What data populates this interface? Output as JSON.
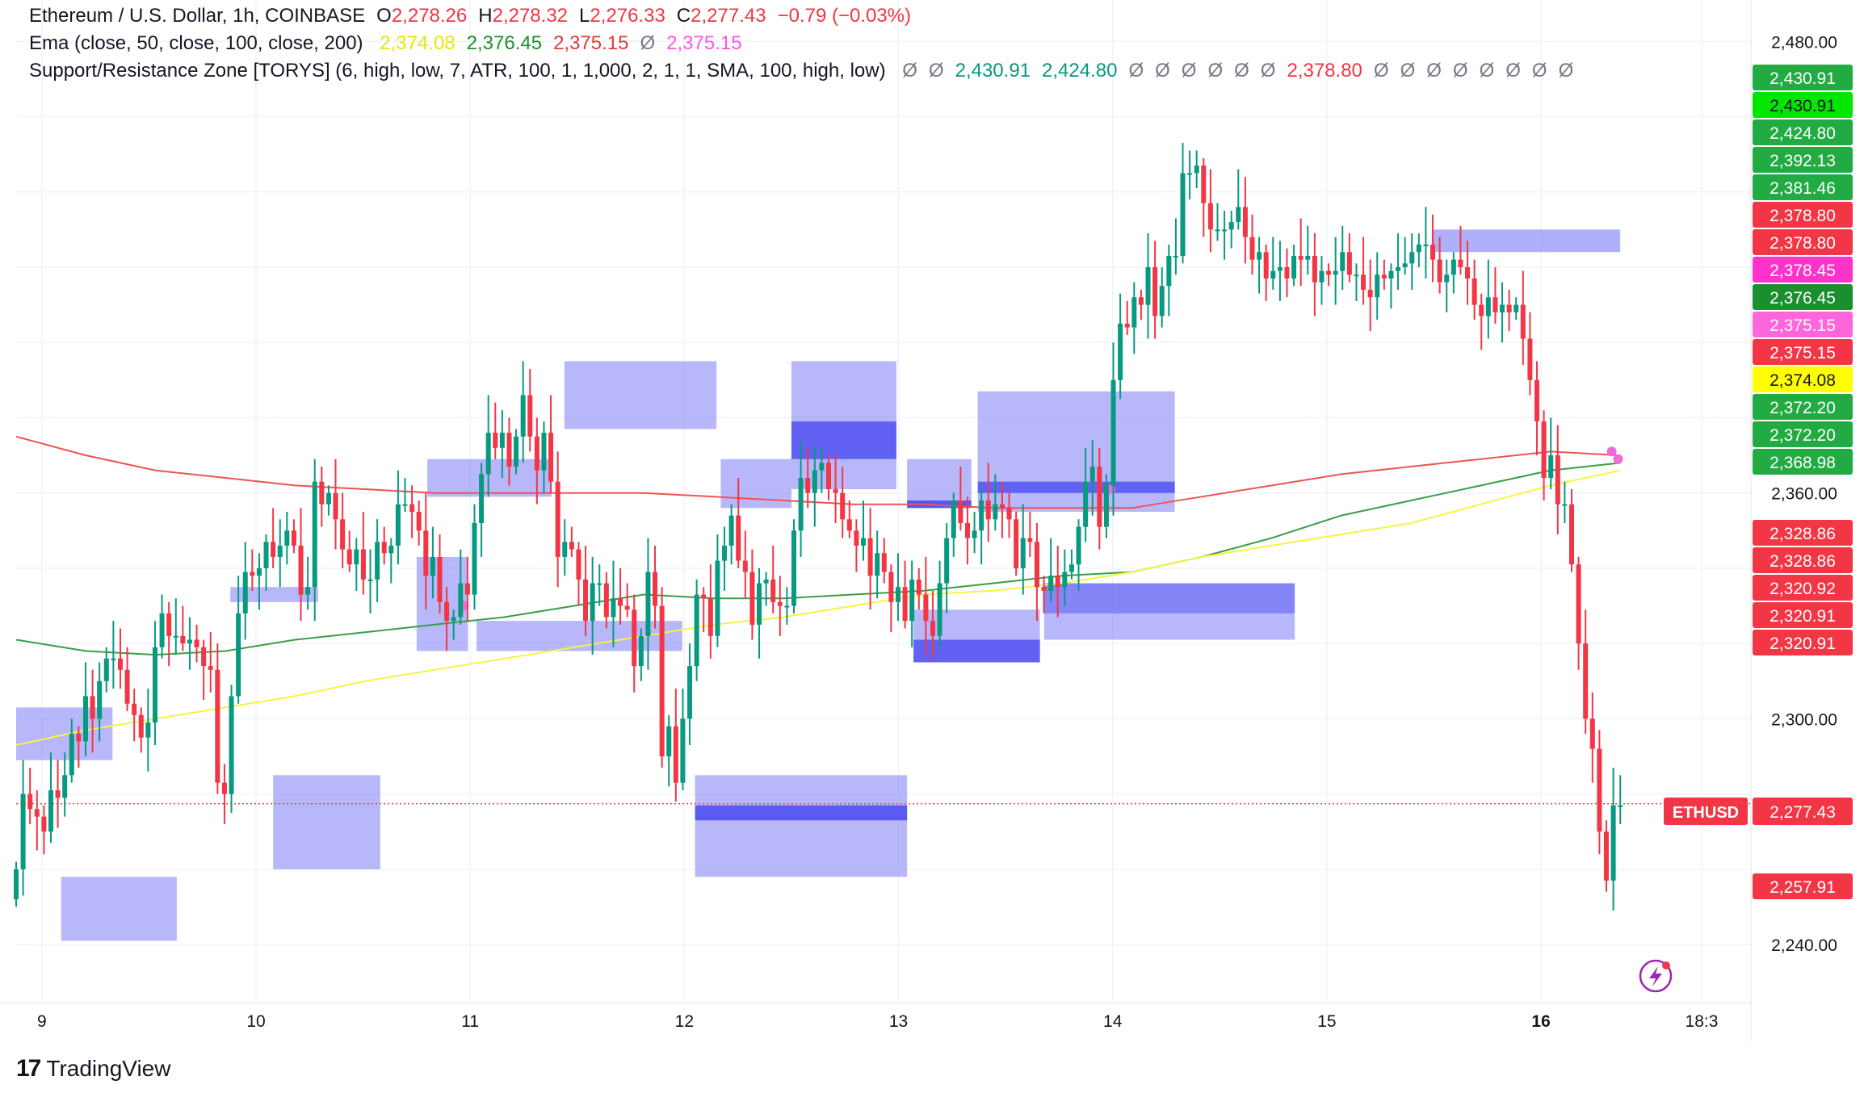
{
  "legend": {
    "title_line": {
      "symbol": "Ethereum / U.S. Dollar, 1h, COINBASE",
      "open_label": "O",
      "open": "2,278.26",
      "high_label": "H",
      "high": "2,278.32",
      "low_label": "L",
      "low": "2,276.33",
      "close_label": "C",
      "close": "2,277.43",
      "change": "−0.79 (−0.03%)"
    },
    "ema_line": {
      "name": "Ema (close, 50, close, 100, close, 200)",
      "values": [
        "2,374.08",
        "2,376.45",
        "2,375.15",
        "Ø",
        "2,375.15"
      ],
      "colors": [
        "#e8e800",
        "#1b8f2e",
        "#e53935",
        "#787b86",
        "#ff55e6"
      ]
    },
    "sr_line": {
      "name": "Support/Resistance Zone [TORYS] (6, high, low, 7, ATR, 100, 1, 1,000, 2, 1, 1, SMA, 100, high, low)",
      "values": [
        "Ø",
        "Ø",
        "2,430.91",
        "2,424.80",
        "Ø",
        "Ø",
        "Ø",
        "Ø",
        "Ø",
        "Ø",
        "2,378.80",
        "Ø",
        "Ø",
        "Ø",
        "Ø",
        "Ø",
        "Ø",
        "Ø",
        "Ø"
      ],
      "colors": [
        "#787b86",
        "#787b86",
        "#089981",
        "#089981",
        "#787b86",
        "#787b86",
        "#787b86",
        "#787b86",
        "#787b86",
        "#787b86",
        "#f23645",
        "#787b86",
        "#787b86",
        "#787b86",
        "#787b86",
        "#787b86",
        "#787b86",
        "#787b86",
        "#787b86"
      ]
    }
  },
  "colors": {
    "up": "#089981",
    "down": "#f23645",
    "zone": "#6f6ff6",
    "zone_dark": "#4b4bf2",
    "ema50": "#f5f542",
    "ema100": "#3a9e47",
    "ema200": "#ef5350",
    "ema_marker": "#f06bd7",
    "grid": "#f0f3fa",
    "axis_text": "#131722"
  },
  "price_labels": [
    {
      "value": "2,430.91",
      "bg": "#22ab43"
    },
    {
      "value": "2,430.91",
      "bg": "#00e600"
    },
    {
      "value": "2,424.80",
      "bg": "#22ab43"
    },
    {
      "value": "2,392.13",
      "bg": "#22ab43"
    },
    {
      "value": "2,381.46",
      "bg": "#22ab43"
    },
    {
      "value": "2,378.80",
      "bg": "#f23645"
    },
    {
      "value": "2,378.80",
      "bg": "#f23645"
    },
    {
      "value": "2,378.45",
      "bg": "#ff33cc"
    },
    {
      "value": "2,376.45",
      "bg": "#1b8f2e"
    },
    {
      "value": "2,375.15",
      "bg": "#ff66dd"
    },
    {
      "value": "2,375.15",
      "bg": "#f23645"
    },
    {
      "value": "2,374.08",
      "bg": "#ffff00"
    },
    {
      "value": "2,372.20",
      "bg": "#22ab43"
    },
    {
      "value": "2,372.20",
      "bg": "#22ab43"
    },
    {
      "value": "2,368.98",
      "bg": "#22ab43"
    },
    {
      "value": "2,328.86",
      "bg": "#f23645"
    },
    {
      "value": "2,328.86",
      "bg": "#f23645"
    },
    {
      "value": "2,320.92",
      "bg": "#f23645"
    },
    {
      "value": "2,320.91",
      "bg": "#f23645"
    },
    {
      "value": "2,320.91",
      "bg": "#f23645"
    },
    {
      "value": "2,257.91",
      "bg": "#f23645"
    }
  ],
  "symbol_label": "ETHUSD",
  "last_price": "2,277.43",
  "brand": "TradingView",
  "chart_data": {
    "type": "candlestick",
    "title": "Ethereum / U.S. Dollar, 1h, COINBASE",
    "y_ticks": [
      "2,480.00",
      "2,360.00",
      "2,300.00",
      "2,240.00"
    ],
    "y_tick_values": [
      2480,
      2360,
      2300,
      2240
    ],
    "x_ticks": [
      "9",
      "10",
      "11",
      "12",
      "13",
      "14",
      "15",
      "16",
      "18:3"
    ],
    "x_tick_days": [
      9,
      10,
      11,
      12,
      13,
      14,
      15,
      16,
      16.75
    ],
    "x_range_days": [
      8.88,
      16.95
    ],
    "y_range": [
      2225,
      2491
    ],
    "last_price": 2277.43,
    "candle_closes": [
      2260,
      2280,
      2276,
      2274,
      2270,
      2281,
      2279,
      2285,
      2296,
      2294,
      2306,
      2300,
      2310,
      2316,
      2316,
      2313,
      2304,
      2301,
      2295,
      2299,
      2319,
      2328,
      2322,
      2322,
      2320,
      2321,
      2319,
      2314,
      2313,
      2283,
      2280,
      2306,
      2328,
      2339,
      2338,
      2340,
      2347,
      2343,
      2346,
      2350,
      2346,
      2333,
      2335,
      2363,
      2357,
      2360,
      2353,
      2345,
      2341,
      2345,
      2337,
      2337,
      2347,
      2344,
      2346,
      2357,
      2357,
      2355,
      2350,
      2338,
      2343,
      2331,
      2326,
      2327,
      2336,
      2333,
      2352,
      2365,
      2376,
      2372,
      2376,
      2367,
      2375,
      2386,
      2375,
      2366,
      2376,
      2363,
      2343,
      2347,
      2345,
      2337,
      2326,
      2336,
      2336,
      2327,
      2332,
      2330,
      2329,
      2314,
      2322,
      2339,
      2330,
      2290,
      2298,
      2283,
      2300,
      2314,
      2333,
      2332,
      2322,
      2342,
      2346,
      2354,
      2342,
      2339,
      2325,
      2336,
      2337,
      2331,
      2330,
      2330,
      2350,
      2364,
      2360,
      2366,
      2368,
      2361,
      2360,
      2353,
      2350,
      2346,
      2348,
      2338,
      2344,
      2339,
      2331,
      2335,
      2326,
      2337,
      2333,
      2326,
      2322,
      2336,
      2348,
      2358,
      2352,
      2348,
      2350,
      2358,
      2353,
      2357,
      2356,
      2353,
      2340,
      2348,
      2347,
      2335,
      2334,
      2338,
      2335,
      2339,
      2341,
      2351,
      2363,
      2367,
      2351,
      2362,
      2390,
      2405,
      2404,
      2412,
      2410,
      2420,
      2407,
      2415,
      2423,
      2423,
      2445,
      2445,
      2447,
      2437,
      2430,
      2430,
      2430,
      2432,
      2436,
      2428,
      2422,
      2424,
      2417,
      2419,
      2420,
      2417,
      2423,
      2422,
      2423,
      2416,
      2419,
      2418,
      2419,
      2424,
      2418,
      2418,
      2414,
      2412,
      2418,
      2417,
      2419,
      2420,
      2421,
      2424,
      2426,
      2426,
      2422,
      2416,
      2418,
      2422,
      2420,
      2417,
      2410,
      2407,
      2412,
      2408,
      2410,
      2408,
      2410,
      2401,
      2390,
      2379,
      2364,
      2370,
      2357,
      2357,
      2341,
      2320,
      2300,
      2292,
      2270,
      2257,
      2277,
      2277
    ],
    "ema50": [
      2293,
      2297,
      2300,
      2303,
      2306,
      2310,
      2313,
      2316,
      2319,
      2322,
      2325,
      2327,
      2330,
      2333,
      2334,
      2336,
      2339,
      2343,
      2346,
      2349,
      2352,
      2357,
      2362,
      2366
    ],
    "ema100": [
      2321,
      2318,
      2317,
      2318,
      2321,
      2323,
      2325,
      2327,
      2330,
      2333,
      2332,
      2332,
      2333,
      2334,
      2336,
      2338,
      2339,
      2343,
      2348,
      2354,
      2358,
      2362,
      2366,
      2368
    ],
    "ema200": [
      2375,
      2370,
      2366,
      2364,
      2362,
      2361,
      2360,
      2360,
      2360,
      2360,
      2359,
      2358,
      2357,
      2357,
      2356,
      2356,
      2356,
      2359,
      2362,
      2365,
      2367,
      2369,
      2371,
      2370
    ]
  }
}
